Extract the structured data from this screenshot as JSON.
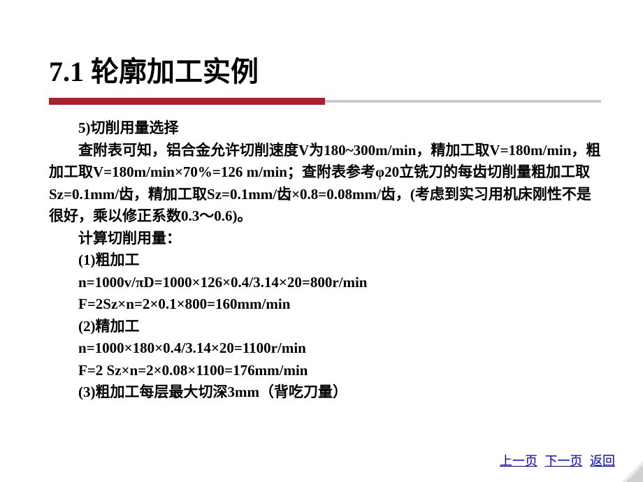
{
  "title": "7.1 轮廓加工实例",
  "divider": {
    "red_color": "#aa1f2e",
    "gray_color": "#cccccc"
  },
  "content": {
    "line1": "5)切削用量选择",
    "para1": "查附表可知，铝合金允许切削速度V为180~300m/min，精加工取V=180m/min，粗加工取V=180m/min×70%=126 m/min；查附表参考φ20立铣刀的每齿切削量粗加工取Sz=0.1mm/齿，精加工取Sz=0.1mm/齿×0.8=0.08mm/齿，(考虑到实习用机床刚性不是很好，乘以修正系数0.3～0.6)。",
    "line2": "计算切削用量：",
    "line3": "(1)粗加工",
    "line4": "n=1000v/πD=1000×126×0.4/3.14×20=800r/min",
    "line5": "F=2Sz×n=2×0.1×800=160mm/min",
    "line6": "(2)精加工",
    "line7": "n=1000×180×0.4/3.14×20=1100r/min",
    "line8": "F=2 Sz×n=2×0.08×1100=176mm/min",
    "line9": "(3)粗加工每层最大切深3mm（背吃刀量）"
  },
  "nav": {
    "prev": "上一页",
    "next": "下一页",
    "back": "返回"
  }
}
